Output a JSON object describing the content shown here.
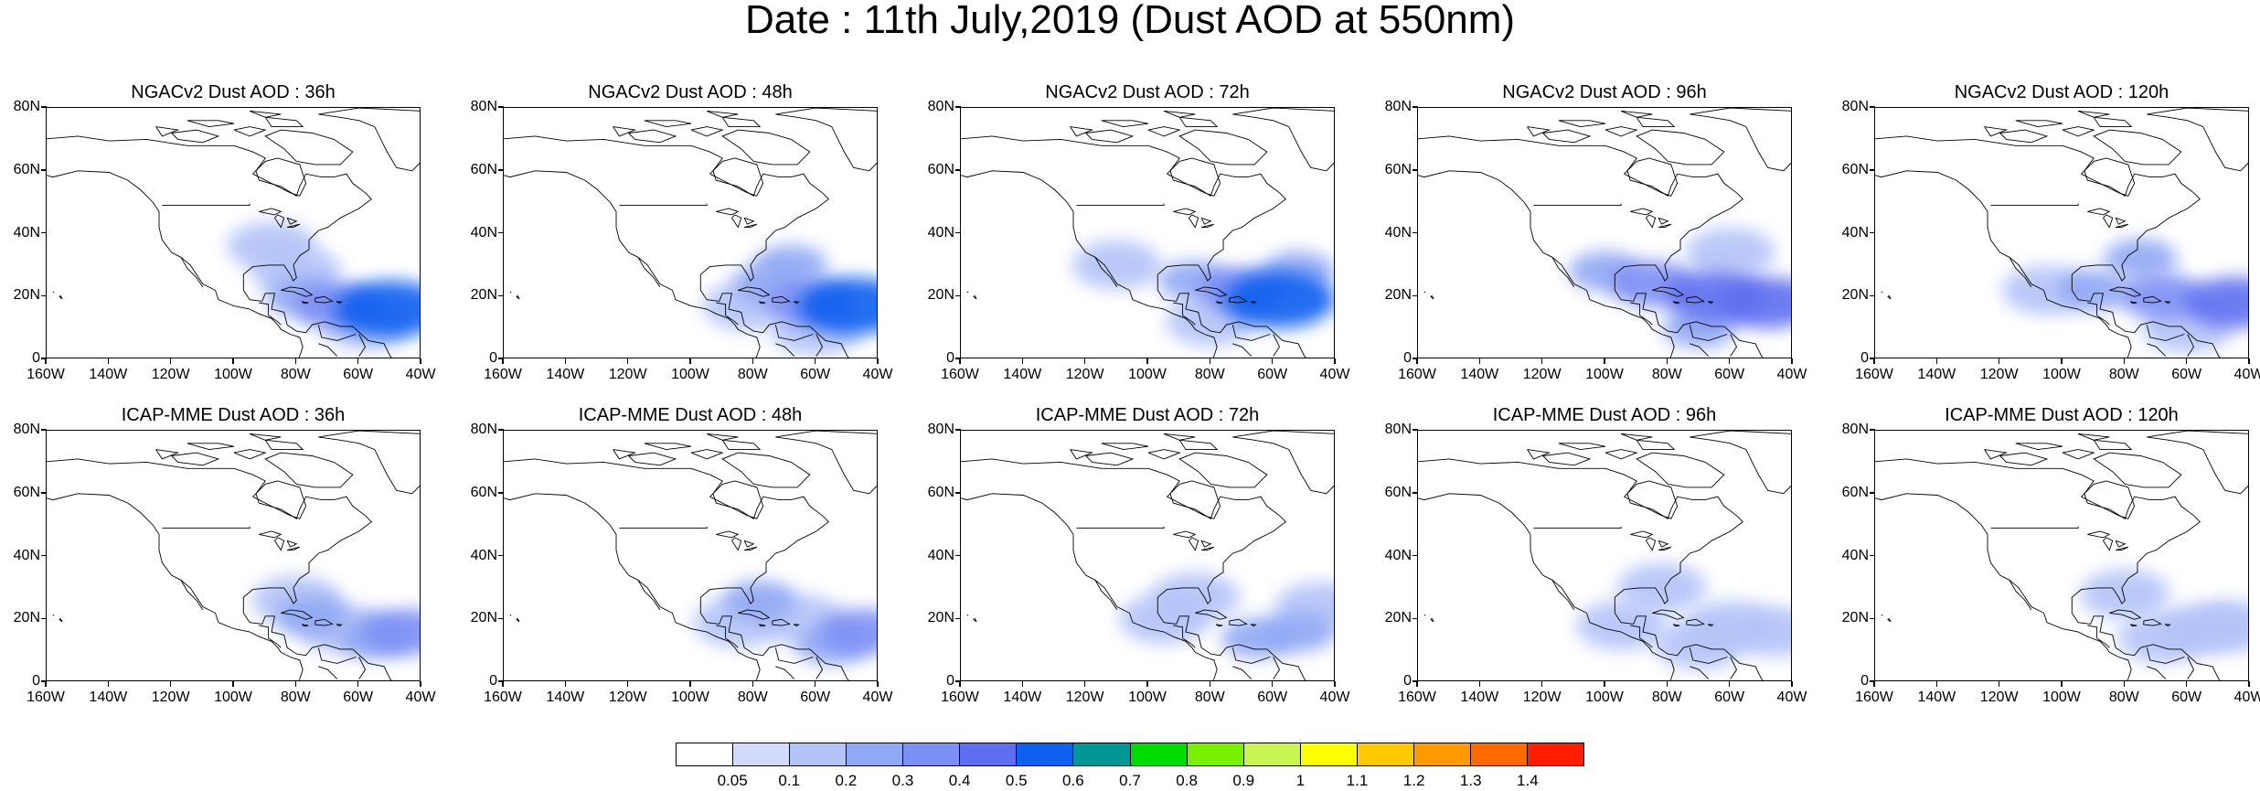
{
  "title": "Date : 11th July,2019 (Dust AOD at 550nm)",
  "y_ticks": [
    "80N",
    "60N",
    "40N",
    "20N",
    "0"
  ],
  "x_ticks": [
    "160W",
    "140W",
    "120W",
    "100W",
    "80W",
    "60W",
    "40W"
  ],
  "lon_range": [
    -160,
    -40
  ],
  "lat_range": [
    0,
    80
  ],
  "panels": [
    {
      "title": "NGACv2 Dust AOD : 36h",
      "model": "NGACv2",
      "lead": 36,
      "plumes": [
        {
          "lon": -50,
          "lat": 16,
          "level": 5
        },
        {
          "lon": -67,
          "lat": 17,
          "level": 3
        },
        {
          "lon": -78,
          "lat": 20,
          "level": 2
        },
        {
          "lon": -80,
          "lat": 28,
          "level": 1
        },
        {
          "lon": -58,
          "lat": 11,
          "level": 1
        },
        {
          "lon": -88,
          "lat": 36,
          "level": 1
        }
      ]
    },
    {
      "title": "NGACv2 Dust AOD : 48h",
      "model": "NGACv2",
      "lead": 48,
      "plumes": [
        {
          "lon": -48,
          "lat": 17,
          "level": 5
        },
        {
          "lon": -62,
          "lat": 18,
          "level": 3
        },
        {
          "lon": -75,
          "lat": 24,
          "level": 2
        },
        {
          "lon": -68,
          "lat": 30,
          "level": 2
        },
        {
          "lon": -82,
          "lat": 17,
          "level": 1
        },
        {
          "lon": -60,
          "lat": 9,
          "level": 1
        }
      ]
    },
    {
      "title": "NGACv2 Dust AOD : 72h",
      "model": "NGACv2",
      "lead": 72,
      "plumes": [
        {
          "lon": -58,
          "lat": 19,
          "level": 5
        },
        {
          "lon": -70,
          "lat": 22,
          "level": 3
        },
        {
          "lon": -52,
          "lat": 28,
          "level": 2
        },
        {
          "lon": -85,
          "lat": 25,
          "level": 2
        },
        {
          "lon": -80,
          "lat": 12,
          "level": 1
        },
        {
          "lon": -110,
          "lat": 30,
          "level": 1
        }
      ]
    },
    {
      "title": "NGACv2 Dust AOD : 96h",
      "model": "NGACv2",
      "lead": 96,
      "plumes": [
        {
          "lon": -65,
          "lat": 20,
          "level": 4
        },
        {
          "lon": -48,
          "lat": 18,
          "level": 4
        },
        {
          "lon": -85,
          "lat": 24,
          "level": 3
        },
        {
          "lon": -100,
          "lat": 28,
          "level": 2
        },
        {
          "lon": -70,
          "lat": 10,
          "level": 2
        },
        {
          "lon": -60,
          "lat": 34,
          "level": 1
        }
      ]
    },
    {
      "title": "NGACv2 Dust AOD : 120h",
      "model": "NGACv2",
      "lead": 120,
      "plumes": [
        {
          "lon": -45,
          "lat": 18,
          "level": 4
        },
        {
          "lon": -68,
          "lat": 20,
          "level": 3
        },
        {
          "lon": -90,
          "lat": 22,
          "level": 2
        },
        {
          "lon": -75,
          "lat": 32,
          "level": 2
        },
        {
          "lon": -60,
          "lat": 10,
          "level": 1
        },
        {
          "lon": -105,
          "lat": 22,
          "level": 1
        }
      ]
    },
    {
      "title": "ICAP-MME Dust AOD : 36h",
      "model": "ICAP-MME",
      "lead": 36,
      "plumes": [
        {
          "lon": -45,
          "lat": 16,
          "level": 3
        },
        {
          "lon": -55,
          "lat": 14,
          "level": 2
        },
        {
          "lon": -75,
          "lat": 21,
          "level": 2
        },
        {
          "lon": -80,
          "lat": 26,
          "level": 1
        },
        {
          "lon": -65,
          "lat": 17,
          "level": 1
        }
      ]
    },
    {
      "title": "ICAP-MME Dust AOD : 48h",
      "model": "ICAP-MME",
      "lead": 48,
      "plumes": [
        {
          "lon": -45,
          "lat": 16,
          "level": 3
        },
        {
          "lon": -55,
          "lat": 12,
          "level": 2
        },
        {
          "lon": -78,
          "lat": 26,
          "level": 2
        },
        {
          "lon": -65,
          "lat": 20,
          "level": 1
        },
        {
          "lon": -85,
          "lat": 19,
          "level": 1
        }
      ]
    },
    {
      "title": "ICAP-MME Dust AOD : 72h",
      "model": "ICAP-MME",
      "lead": 72,
      "plumes": [
        {
          "lon": -52,
          "lat": 16,
          "level": 2
        },
        {
          "lon": -65,
          "lat": 14,
          "level": 2
        },
        {
          "lon": -85,
          "lat": 27,
          "level": 1
        },
        {
          "lon": -95,
          "lat": 20,
          "level": 1
        },
        {
          "lon": -45,
          "lat": 24,
          "level": 1
        }
      ]
    },
    {
      "title": "ICAP-MME Dust AOD : 96h",
      "model": "ICAP-MME",
      "lead": 96,
      "plumes": [
        {
          "lon": -60,
          "lat": 18,
          "level": 1
        },
        {
          "lon": -45,
          "lat": 16,
          "level": 1
        },
        {
          "lon": -82,
          "lat": 30,
          "level": 1
        },
        {
          "lon": -95,
          "lat": 18,
          "level": 1
        },
        {
          "lon": -70,
          "lat": 12,
          "level": 1
        }
      ]
    },
    {
      "title": "ICAP-MME Dust AOD : 120h",
      "model": "ICAP-MME",
      "lead": 120,
      "plumes": [
        {
          "lon": -55,
          "lat": 17,
          "level": 1
        },
        {
          "lon": -45,
          "lat": 18,
          "level": 1
        },
        {
          "lon": -68,
          "lat": 14,
          "level": 1
        },
        {
          "lon": -80,
          "lat": 28,
          "level": 1
        }
      ]
    }
  ],
  "colorbar": {
    "labels": [
      "0.05",
      "0.1",
      "0.2",
      "0.3",
      "0.4",
      "0.5",
      "0.6",
      "0.7",
      "0.8",
      "0.9",
      "1",
      "1.1",
      "1.2",
      "1.3",
      "1.4"
    ],
    "colors": [
      "#ffffff",
      "#d2dcfa",
      "#b4c3f8",
      "#91a8f4",
      "#7d8ff5",
      "#5f6ef0",
      "#0f5ff0",
      "#009696",
      "#00dc00",
      "#78f000",
      "#c8f550",
      "#ffff00",
      "#ffc800",
      "#ff9b00",
      "#ff6a00",
      "#ff1e00"
    ]
  }
}
